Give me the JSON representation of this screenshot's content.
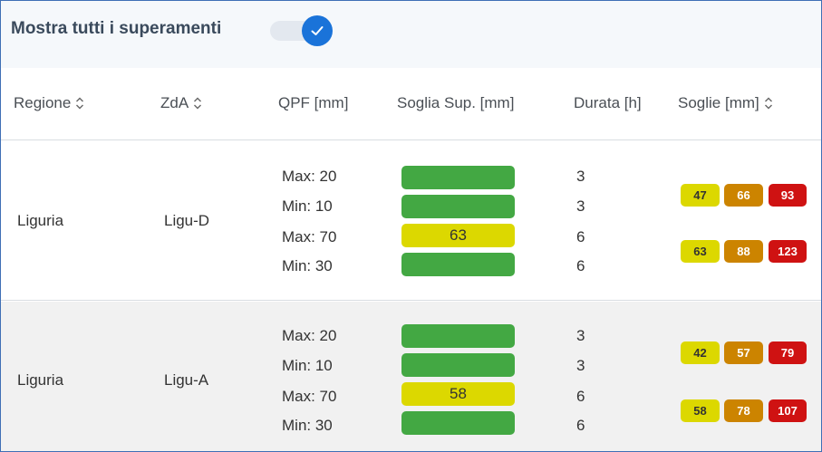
{
  "toggle": {
    "label": "Mostra tutti i superamenti",
    "checked": true,
    "icon": "check-icon",
    "accent": "#1a73d9"
  },
  "columns": {
    "regione": "Regione",
    "zda": "ZdA",
    "qpf": "QPF [mm]",
    "soglia_sup": "Soglia Sup. [mm]",
    "durata": "Durata [h]",
    "soglie": "Soglie [mm]"
  },
  "colors": {
    "green": "#43a843",
    "yellow": "#dcd800",
    "orange": "#cc8400",
    "red": "#cf1212"
  },
  "rows": [
    {
      "regione": "Liguria",
      "zda": "Ligu-D",
      "qpf": [
        "Max: 20",
        "Min: 10",
        "Max: 70",
        "Min: 30"
      ],
      "soglia_sup": [
        {
          "status": "green",
          "value": ""
        },
        {
          "status": "green",
          "value": ""
        },
        {
          "status": "yellow",
          "value": "63"
        },
        {
          "status": "green",
          "value": ""
        }
      ],
      "durata": [
        "3",
        "3",
        "6",
        "6"
      ],
      "soglie": [
        [
          "47",
          "66",
          "93"
        ],
        [
          "63",
          "88",
          "123"
        ]
      ]
    },
    {
      "regione": "Liguria",
      "zda": "Ligu-A",
      "qpf": [
        "Max: 20",
        "Min: 10",
        "Max: 70",
        "Min: 30"
      ],
      "soglia_sup": [
        {
          "status": "green",
          "value": ""
        },
        {
          "status": "green",
          "value": ""
        },
        {
          "status": "yellow",
          "value": "58"
        },
        {
          "status": "green",
          "value": ""
        }
      ],
      "durata": [
        "3",
        "3",
        "6",
        "6"
      ],
      "soglie": [
        [
          "42",
          "57",
          "79"
        ],
        [
          "58",
          "78",
          "107"
        ]
      ]
    }
  ]
}
